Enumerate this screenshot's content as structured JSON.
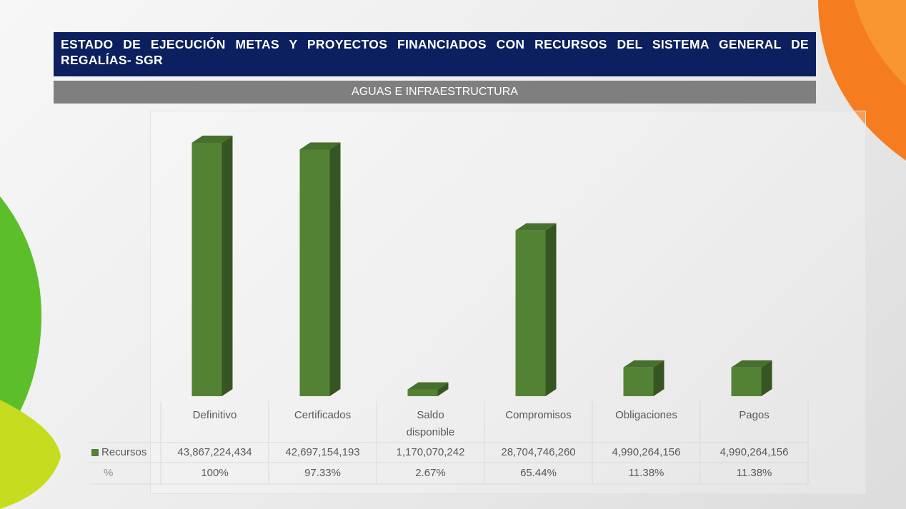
{
  "chart_data": {
    "type": "bar3d",
    "title": "ESTADO DE EJECUCIÓN METAS Y PROYECTOS FINANCIADOS CON RECURSOS DEL SISTEMA GENERAL DE REGALÍAS- SGR",
    "subtitle": "AGUAS E INFRAESTRUCTURA",
    "categories": [
      "Definitivo",
      "Certificados",
      "Saldo disponible",
      "Compromisos",
      "Obligaciones",
      "Pagos"
    ],
    "series": [
      {
        "name": "Recursos",
        "color": "#548235",
        "values": [
          43867224434,
          42697154193,
          1170070242,
          28704746260,
          4990264156,
          4990264156
        ],
        "value_labels": [
          "43,867,224,434",
          "42,697,154,193",
          "1,170,070,242",
          "28,704,746,260",
          "4,990,264,156",
          "4,990,264,156"
        ]
      }
    ],
    "percent_row": {
      "name": "%",
      "values": [
        100,
        97.33,
        2.67,
        65.44,
        11.38,
        11.38
      ],
      "value_labels": [
        "100%",
        "97.33%",
        "2.67%",
        "65.44%",
        "11.38%",
        "11.38%"
      ]
    }
  }
}
